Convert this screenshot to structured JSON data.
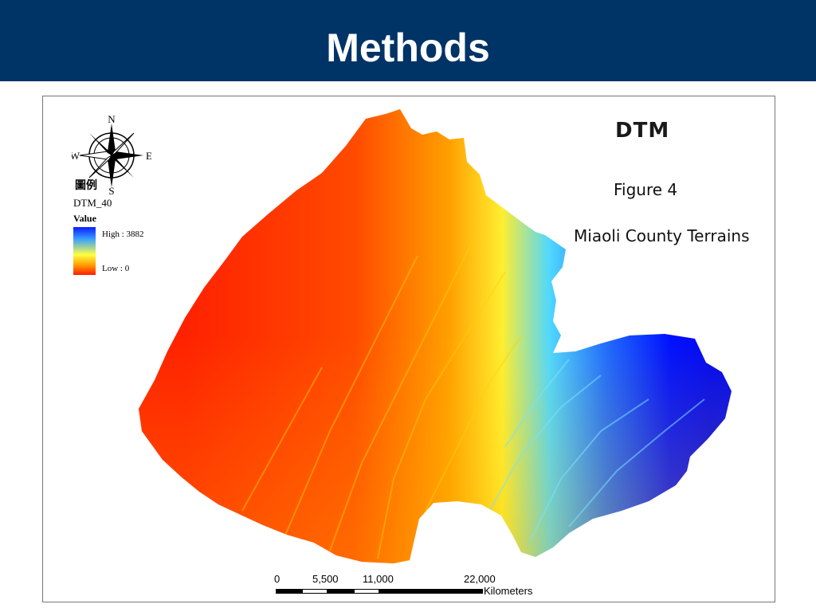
{
  "slide": {
    "title": "Methods",
    "colors": {
      "header_background": "#003366",
      "header_text": "#ffffff"
    }
  },
  "map": {
    "title": "DTM",
    "figure_number": "Figure 4",
    "caption": "Miaoli County Terrains",
    "compass": {
      "icon": "compass-rose-icon",
      "north": "N",
      "south": "S",
      "east": "E",
      "west": "W"
    },
    "legend": {
      "heading": "圖例",
      "layer": "DTM_40",
      "field": "Value",
      "high_label": "High : 3882",
      "low_label": "Low : 0",
      "high_value": 3882,
      "low_value": 0,
      "ramp_colors": [
        "#0a1cff",
        "#3aa0ff",
        "#ffff40",
        "#ff9a00",
        "#ff1a00"
      ]
    },
    "scale_bar": {
      "ticks": [
        "0",
        "5,500",
        "11,000",
        "22,000"
      ],
      "unit": "Kilometers"
    }
  }
}
